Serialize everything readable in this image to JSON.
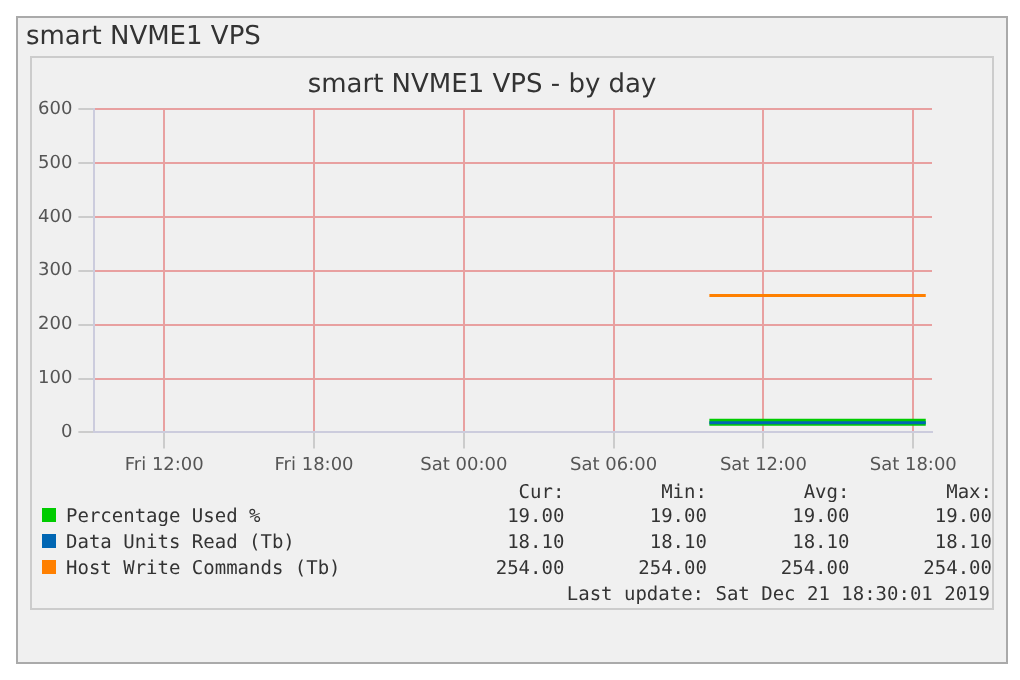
{
  "chart_data": {
    "type": "line",
    "title": "smart NVME1 VPS",
    "subtitle": "smart NVME1 VPS - by day",
    "x": [
      "2019-12-21T09:50",
      "2019-12-21T18:30"
    ],
    "xlim": [
      "2019-12-20T09:12",
      "2019-12-21T18:45"
    ],
    "xticks": [
      {
        "value": "2019-12-20T12:00",
        "label": "Fri 12:00"
      },
      {
        "value": "2019-12-20T18:00",
        "label": "Fri 18:00"
      },
      {
        "value": "2019-12-21T00:00",
        "label": "Sat 00:00"
      },
      {
        "value": "2019-12-21T06:00",
        "label": "Sat 06:00"
      },
      {
        "value": "2019-12-21T12:00",
        "label": "Sat 12:00"
      },
      {
        "value": "2019-12-21T18:00",
        "label": "Sat 18:00"
      }
    ],
    "ylim": [
      0,
      600
    ],
    "yticks": [
      0,
      100,
      200,
      300,
      400,
      500,
      600
    ],
    "grid": true,
    "legend": "bottom",
    "marker": "none",
    "series": [
      {
        "name": "Percentage Used %",
        "color": "#00cc00",
        "values": [
          19,
          19
        ]
      },
      {
        "name": "Data Units Read (Tb)",
        "color": "#0066b3",
        "values": [
          18.1,
          18.1
        ]
      },
      {
        "name": "Host Write Commands (Tb)",
        "color": "#ff8000",
        "values": [
          254,
          254
        ]
      }
    ],
    "annotations": [
      "Cur:",
      "Min:",
      "Avg:",
      "Max:",
      "19.00",
      "19.00",
      "19.00",
      "19.00",
      "18.10",
      "18.10",
      "18.10",
      "18.10",
      "254.00",
      "254.00",
      "254.00",
      "254.00",
      "Last update: Sat Dec 21 18:30:01 2019"
    ]
  }
}
